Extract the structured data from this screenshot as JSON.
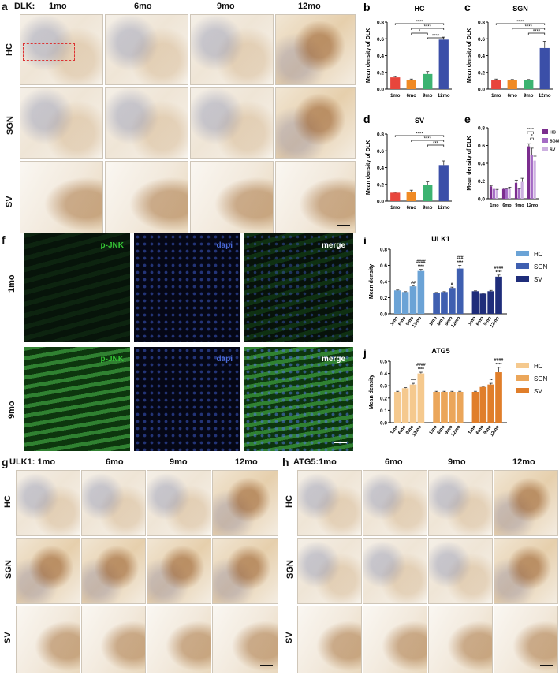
{
  "panel_a": {
    "letter": "a",
    "prefix": "DLK:",
    "cols": [
      "1mo",
      "6mo",
      "9mo",
      "12mo"
    ],
    "rows": [
      "HC",
      "SGN",
      "SV"
    ]
  },
  "panel_f": {
    "letter": "f",
    "channels": [
      "p-JNK",
      "dapi",
      "merge"
    ],
    "rows": [
      "1mo",
      "9mo"
    ]
  },
  "panel_g": {
    "letter": "g",
    "cols": [
      "ULK1: 1mo",
      "6mo",
      "9mo",
      "12mo"
    ],
    "rows": [
      "HC",
      "SGN",
      "SV"
    ]
  },
  "panel_h": {
    "letter": "h",
    "cols": [
      "ATG5:1mo",
      "6mo",
      "9mo",
      "12mo"
    ],
    "rows": [
      "HC",
      "SGN",
      "SV"
    ]
  },
  "chart_data": [
    {
      "id": "b",
      "type": "bar",
      "title": "HC",
      "categories": [
        "1mo",
        "6mo",
        "9mo",
        "12mo"
      ],
      "values": [
        0.14,
        0.11,
        0.18,
        0.59
      ],
      "errors": [
        0.01,
        0.01,
        0.03,
        0.03
      ],
      "colors": [
        "#e8453c",
        "#f08a24",
        "#3cb371",
        "#3b4fa8"
      ],
      "ylabel": "Mean density of DLK",
      "ylim": [
        0,
        0.8
      ],
      "yticks": [
        "0.0",
        "0.2",
        "0.4",
        "0.6",
        "0.8"
      ],
      "significance": [
        {
          "from": 0,
          "to": 3,
          "label": "****"
        },
        {
          "from": 1,
          "to": 3,
          "label": "****"
        },
        {
          "from": 1,
          "to": 2,
          "label": "*"
        },
        {
          "from": 2,
          "to": 3,
          "label": "****"
        }
      ]
    },
    {
      "id": "c",
      "type": "bar",
      "title": "SGN",
      "categories": [
        "1mo",
        "6mo",
        "9mo",
        "12mo"
      ],
      "values": [
        0.11,
        0.11,
        0.11,
        0.49
      ],
      "errors": [
        0.01,
        0.005,
        0.005,
        0.08
      ],
      "colors": [
        "#e8453c",
        "#f08a24",
        "#3cb371",
        "#3b4fa8"
      ],
      "ylabel": "Mean density of DLK",
      "ylim": [
        0,
        0.8
      ],
      "yticks": [
        "0.0",
        "0.2",
        "0.4",
        "0.6",
        "0.8"
      ],
      "significance": [
        {
          "from": 0,
          "to": 3,
          "label": "****"
        },
        {
          "from": 1,
          "to": 3,
          "label": "****"
        },
        {
          "from": 2,
          "to": 3,
          "label": "****"
        }
      ]
    },
    {
      "id": "d",
      "type": "bar",
      "title": "SV",
      "categories": [
        "1mo",
        "6mo",
        "9mo",
        "12mo"
      ],
      "values": [
        0.1,
        0.11,
        0.19,
        0.43
      ],
      "errors": [
        0.005,
        0.02,
        0.04,
        0.05
      ],
      "colors": [
        "#e8453c",
        "#f08a24",
        "#3cb371",
        "#3b4fa8"
      ],
      "ylabel": "Mean density of DLK",
      "ylim": [
        0,
        0.8
      ],
      "yticks": [
        "0.0",
        "0.2",
        "0.4",
        "0.6",
        "0.8"
      ],
      "significance": [
        {
          "from": 0,
          "to": 3,
          "label": "****"
        },
        {
          "from": 1,
          "to": 3,
          "label": "****"
        },
        {
          "from": 2,
          "to": 3,
          "label": "***"
        }
      ]
    },
    {
      "id": "e",
      "type": "bar",
      "categories": [
        "1mo",
        "6mo",
        "9mo",
        "12mo"
      ],
      "series": [
        {
          "name": "HC",
          "color": "#7b2d8e",
          "values": [
            0.14,
            0.11,
            0.18,
            0.59
          ],
          "errors": [
            0.01,
            0.01,
            0.03,
            0.03
          ]
        },
        {
          "name": "SGN",
          "color": "#a46ac4",
          "values": [
            0.11,
            0.11,
            0.11,
            0.49
          ],
          "errors": [
            0.01,
            0.005,
            0.005,
            0.08
          ]
        },
        {
          "name": "SV",
          "color": "#cdb0e0",
          "values": [
            0.1,
            0.11,
            0.19,
            0.43
          ],
          "errors": [
            0.005,
            0.02,
            0.04,
            0.05
          ]
        }
      ],
      "ylabel": "Mean density of DLK",
      "ylim": [
        0,
        0.8
      ],
      "yticks": [
        "0.0",
        "0.2",
        "0.4",
        "0.6",
        "0.8"
      ],
      "significance_labels": [
        "****",
        "*"
      ],
      "legend": "right"
    },
    {
      "id": "i",
      "type": "bar",
      "title": "ULK1",
      "groups": [
        "HC",
        "SGN",
        "SV"
      ],
      "categories": [
        "1mo",
        "6mo",
        "9mo",
        "12mo"
      ],
      "series": [
        {
          "name": "HC",
          "color": "#6ba3d6",
          "values": [
            0.29,
            0.27,
            0.34,
            0.53
          ],
          "errors": [
            0.005,
            0.005,
            0.01,
            0.02
          ],
          "stars": [
            "",
            "",
            "",
            "****"
          ],
          "hash": [
            "",
            "",
            "##",
            "####"
          ]
        },
        {
          "name": "SGN",
          "color": "#3f5fb0",
          "values": [
            0.26,
            0.27,
            0.32,
            0.56
          ],
          "errors": [
            0.005,
            0.005,
            0.01,
            0.04
          ],
          "stars": [
            "",
            "",
            "",
            "****"
          ],
          "hash": [
            "",
            "",
            "#",
            "###"
          ]
        },
        {
          "name": "SV",
          "color": "#1f2d7a",
          "values": [
            0.28,
            0.25,
            0.28,
            0.46
          ],
          "errors": [
            0.005,
            0.005,
            0.01,
            0.02
          ],
          "stars": [
            "",
            "",
            "",
            "****"
          ],
          "hash": [
            "",
            "",
            "",
            "####"
          ]
        }
      ],
      "ylabel": "Mean density",
      "ylim": [
        0,
        0.8
      ],
      "yticks": [
        "0.0",
        "0.2",
        "0.4",
        "0.6",
        "0.8"
      ],
      "legend": "right"
    },
    {
      "id": "j",
      "type": "bar",
      "title": "ATG5",
      "groups": [
        "HC",
        "SGN",
        "SV"
      ],
      "categories": [
        "1mo",
        "6mo",
        "9mo",
        "12mo"
      ],
      "series": [
        {
          "name": "HC",
          "color": "#f5c98e",
          "values": [
            0.25,
            0.28,
            0.31,
            0.4
          ],
          "errors": [
            0.005,
            0.005,
            0.01,
            0.01
          ],
          "stars": [
            "",
            "",
            "***",
            "****"
          ],
          "hash": [
            "",
            "",
            "",
            "####"
          ]
        },
        {
          "name": "SGN",
          "color": "#eba65a",
          "values": [
            0.25,
            0.25,
            0.25,
            0.25
          ],
          "errors": [
            0.005,
            0.005,
            0.005,
            0.005
          ],
          "stars": [
            "",
            "",
            "",
            ""
          ],
          "hash": [
            "",
            "",
            "",
            ""
          ]
        },
        {
          "name": "SV",
          "color": "#e07e2a",
          "values": [
            0.25,
            0.29,
            0.31,
            0.41
          ],
          "errors": [
            0.005,
            0.005,
            0.01,
            0.04
          ],
          "stars": [
            "",
            "",
            "**",
            "****"
          ],
          "hash": [
            "",
            "",
            "",
            "####"
          ]
        }
      ],
      "ylabel": "Mean density",
      "ylim": [
        0,
        0.5
      ],
      "yticks": [
        "0.0",
        "0.1",
        "0.2",
        "0.3",
        "0.4",
        "0.5"
      ],
      "legend": "right"
    }
  ]
}
